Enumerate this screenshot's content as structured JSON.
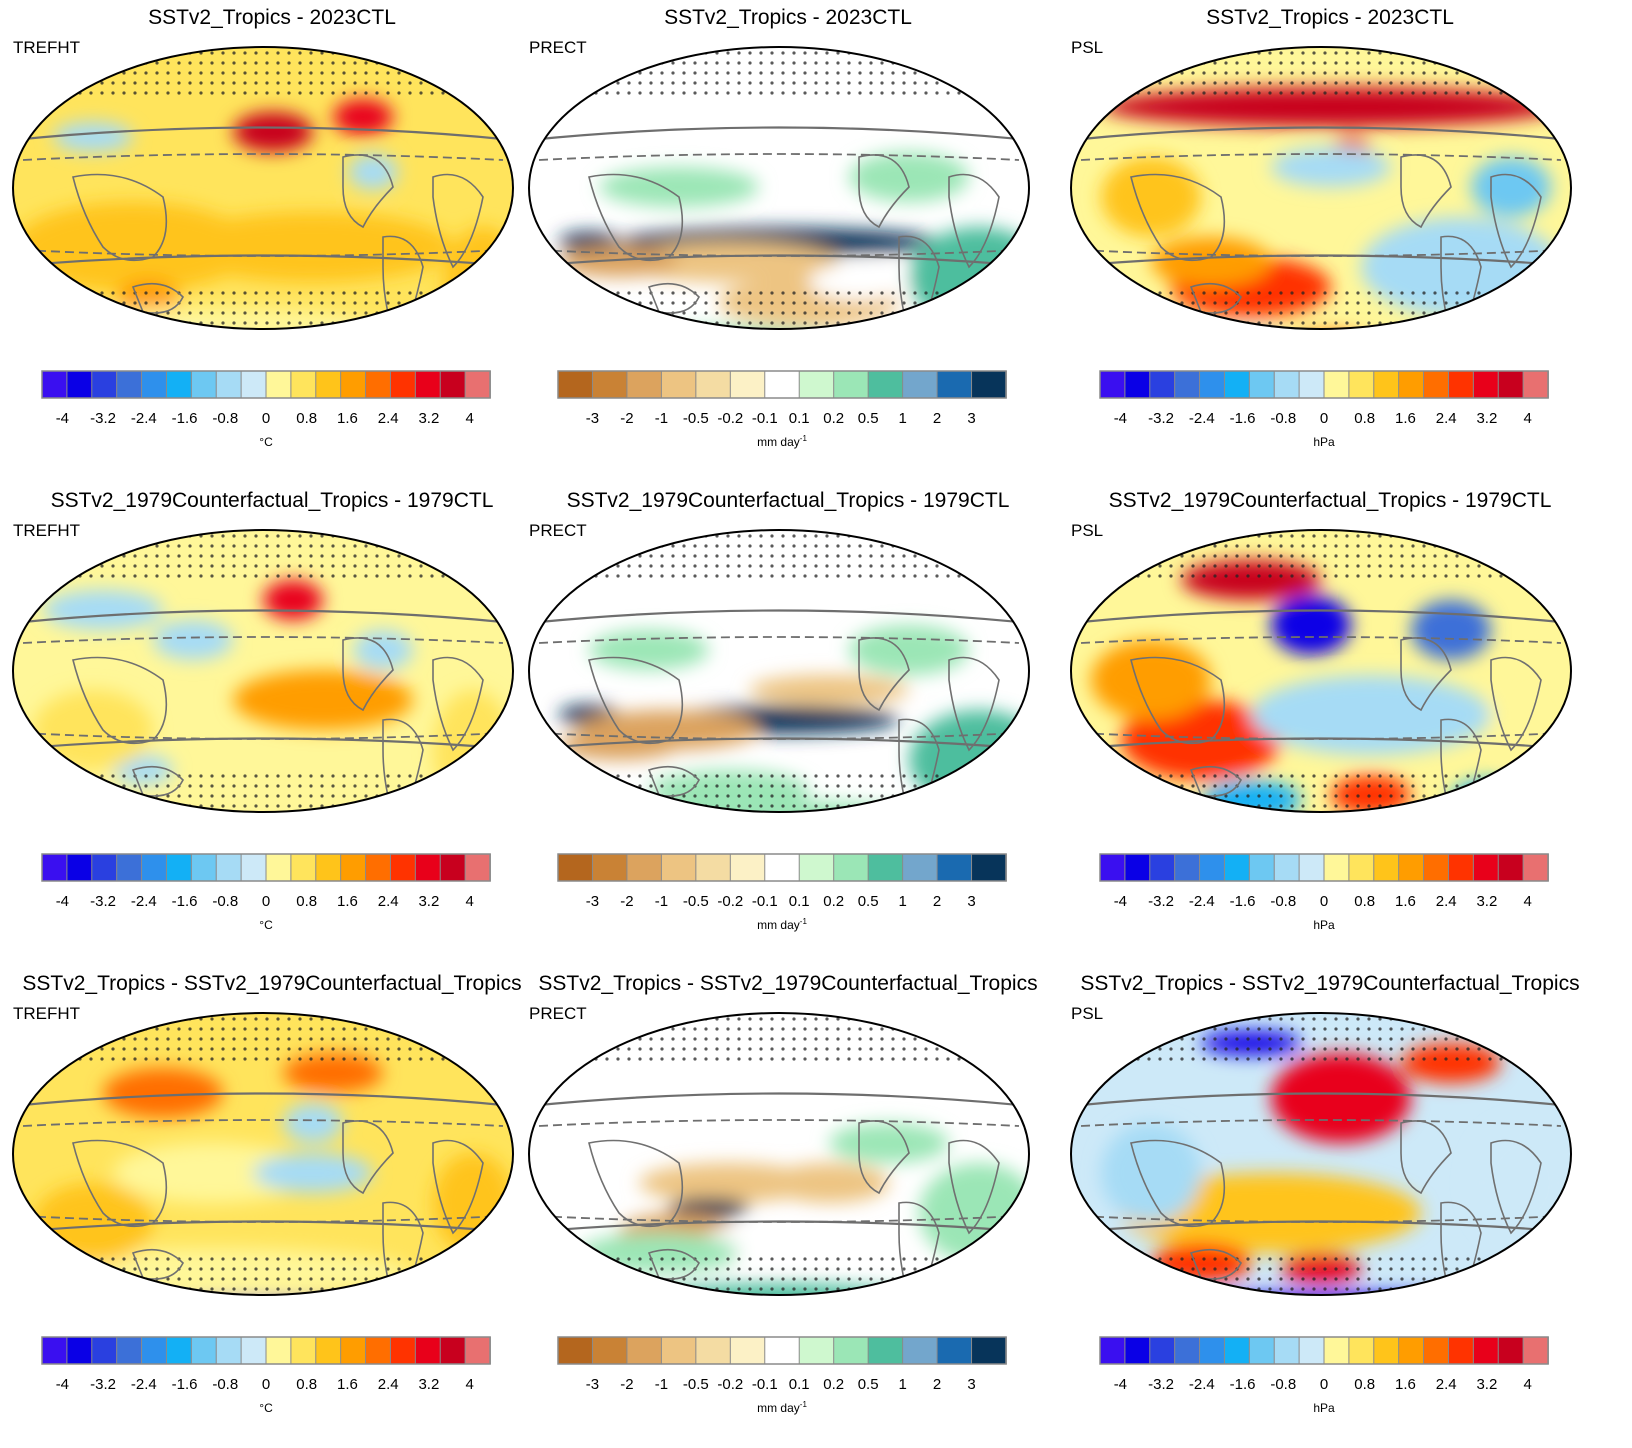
{
  "colorbars": {
    "temp": {
      "colors": [
        "#3a0ff0",
        "#0a00e6",
        "#2a40e0",
        "#3c70d8",
        "#2e90ec",
        "#13b0f5",
        "#6dc8f2",
        "#a6dbf5",
        "#cde9f8",
        "#fff799",
        "#ffe45c",
        "#ffc41a",
        "#ff9d00",
        "#ff6e00",
        "#ff3300",
        "#e8001a",
        "#c8001e",
        "#e87070"
      ],
      "ticks": [
        "-4",
        "-3.2",
        "-2.4",
        "-1.6",
        "-0.8",
        "0",
        "0.8",
        "1.6",
        "2.4",
        "3.2",
        "4"
      ],
      "tick_index": [
        1,
        3,
        5,
        7,
        9,
        11,
        13,
        15,
        17,
        19,
        21
      ],
      "unit": "°C"
    },
    "precip": {
      "colors": [
        "#b4661e",
        "#c98235",
        "#dca35e",
        "#edc482",
        "#f4dca3",
        "#fcf1c6",
        "#ffffff",
        "#cff8cf",
        "#9be6b6",
        "#4ebe9e",
        "#73a6cc",
        "#1a6ab0",
        "#07345a"
      ],
      "ticks": [
        "-3",
        "-2",
        "-1",
        "-0.5",
        "-0.2",
        "-0.1",
        "0.1",
        "0.2",
        "0.5",
        "1",
        "2",
        "3"
      ],
      "tick_index": [
        1,
        2,
        3,
        4,
        5,
        6,
        7,
        8,
        9,
        10,
        11,
        12
      ],
      "unit": "mm day",
      "unit_sup": "-1"
    },
    "psl": {
      "colors": [
        "#3a0ff0",
        "#0a00e6",
        "#2a40e0",
        "#3c70d8",
        "#2e90ec",
        "#13b0f5",
        "#6dc8f2",
        "#a6dbf5",
        "#cde9f8",
        "#fff799",
        "#ffe45c",
        "#ffc41a",
        "#ff9d00",
        "#ff6e00",
        "#ff3300",
        "#e8001a",
        "#c8001e",
        "#e87070"
      ],
      "ticks": [
        "-4",
        "-3.2",
        "-2.4",
        "-1.6",
        "-0.8",
        "0",
        "0.8",
        "1.6",
        "2.4",
        "3.2",
        "4"
      ],
      "tick_index": [
        1,
        3,
        5,
        7,
        9,
        11,
        13,
        15,
        17,
        19,
        21
      ],
      "unit": "hPa"
    }
  },
  "chart_data": [
    {
      "type": "heatmap",
      "title": "SSTv2_Tropics - 2023CTL",
      "variable": "TREFHT",
      "colorbar": "temp",
      "field": "r1_temp"
    },
    {
      "type": "heatmap",
      "title": "SSTv2_Tropics - 2023CTL",
      "variable": "PRECT",
      "colorbar": "precip",
      "field": "r1_precip"
    },
    {
      "type": "heatmap",
      "title": "SSTv2_Tropics - 2023CTL",
      "variable": "PSL",
      "colorbar": "psl",
      "field": "r1_psl"
    },
    {
      "type": "heatmap",
      "title": "SSTv2_1979Counterfactual_Tropics - 1979CTL",
      "variable": "TREFHT",
      "colorbar": "temp",
      "field": "r2_temp"
    },
    {
      "type": "heatmap",
      "title": "SSTv2_1979Counterfactual_Tropics - 1979CTL",
      "variable": "PRECT",
      "colorbar": "precip",
      "field": "r2_precip"
    },
    {
      "type": "heatmap",
      "title": "SSTv2_1979Counterfactual_Tropics - 1979CTL",
      "variable": "PSL",
      "colorbar": "psl",
      "field": "r2_psl"
    },
    {
      "type": "heatmap",
      "title": "SSTv2_Tropics - SSTv2_1979Counterfactual_Tropics",
      "variable": "TREFHT",
      "colorbar": "temp",
      "field": "r3_temp"
    },
    {
      "type": "heatmap",
      "title": "SSTv2_Tropics - SSTv2_1979Counterfactual_Tropics",
      "variable": "PRECT",
      "colorbar": "precip",
      "field": "r3_precip"
    },
    {
      "type": "heatmap",
      "title": "SSTv2_Tropics - SSTv2_1979Counterfactual_Tropics",
      "variable": "PSL",
      "colorbar": "psl",
      "field": "r3_psl"
    }
  ]
}
